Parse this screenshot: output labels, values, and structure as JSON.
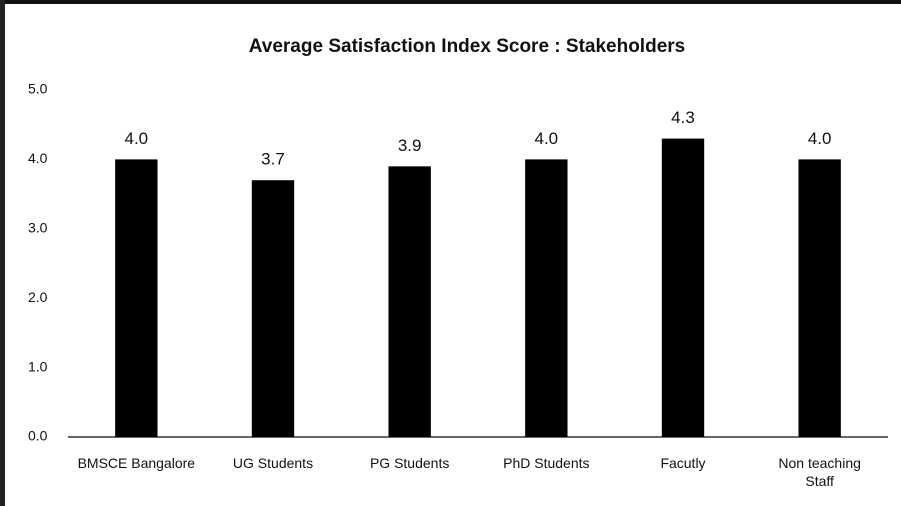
{
  "chart_data": {
    "type": "bar",
    "title": "Average Satisfaction Index Score : Stakeholders",
    "categories": [
      "BMSCE Bangalore",
      "UG Students",
      "PG Students",
      "PhD Students",
      "Facutly",
      "Non teaching Staff"
    ],
    "values": [
      4.0,
      3.7,
      3.9,
      4.0,
      4.3,
      4.0
    ],
    "value_labels": [
      "4.0",
      "3.7",
      "3.9",
      "4.0",
      "4.3",
      "4.0"
    ],
    "color": "#000000",
    "ylim": [
      0,
      5
    ],
    "yticks": [
      {
        "value": 0,
        "label": "0.0"
      },
      {
        "value": 1,
        "label": "1.0"
      },
      {
        "value": 2,
        "label": "2.0"
      },
      {
        "value": 3,
        "label": "3.0"
      },
      {
        "value": 4,
        "label": "4.0"
      },
      {
        "value": 5,
        "label": "5.0"
      }
    ],
    "grid": false
  }
}
